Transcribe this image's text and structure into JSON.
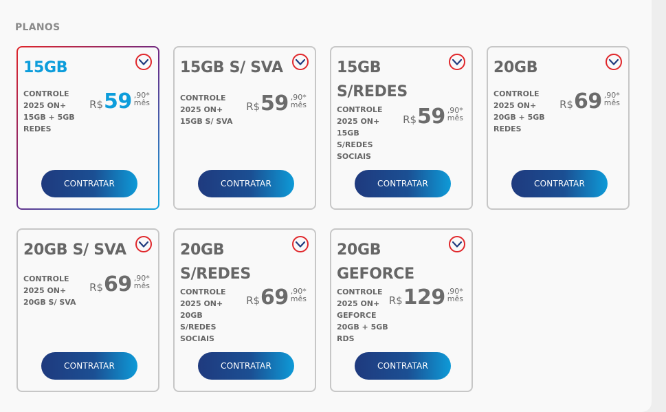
{
  "section": {
    "title": "PLANOS"
  },
  "colors": {
    "accent": "#0d9ddb",
    "button_start": "#1f3a7e",
    "button_end": "#0e9ad7",
    "check_red": "#e0262a",
    "check_blue": "#1f3a7e"
  },
  "icons": {
    "select": "check-circle-icon"
  },
  "plans": [
    {
      "title": "15GB",
      "desc": [
        "CONTROLE",
        "2025 ON+",
        "15GB + 5GB",
        "REDES"
      ],
      "currency": "R$",
      "price_int": "59",
      "price_cents": ",90*",
      "price_period": "mês",
      "button": "CONTRATAR",
      "selected": true
    },
    {
      "title": "15GB S/ SVA",
      "desc": [
        "CONTROLE",
        "2025 ON+",
        "15GB S/ SVA"
      ],
      "currency": "R$",
      "price_int": "59",
      "price_cents": ",90*",
      "price_period": "mês",
      "button": "CONTRATAR",
      "selected": false
    },
    {
      "title": "15GB S/REDES",
      "desc": [
        "CONTROLE",
        "2025 ON+",
        "15GB",
        "S/REDES",
        "SOCIAIS"
      ],
      "currency": "R$",
      "price_int": "59",
      "price_cents": ",90*",
      "price_period": "mês",
      "button": "CONTRATAR",
      "selected": false
    },
    {
      "title": "20GB",
      "desc": [
        "CONTROLE",
        "2025 ON+",
        "20GB + 5GB",
        "REDES"
      ],
      "currency": "R$",
      "price_int": "69",
      "price_cents": ",90*",
      "price_period": "mês",
      "button": "CONTRATAR",
      "selected": false
    },
    {
      "title": "20GB S/ SVA",
      "desc": [
        "CONTROLE",
        "2025 ON+",
        "20GB S/ SVA"
      ],
      "currency": "R$",
      "price_int": "69",
      "price_cents": ",90*",
      "price_period": "mês",
      "button": "CONTRATAR",
      "selected": false
    },
    {
      "title": "20GB S/REDES",
      "desc": [
        "CONTROLE",
        "2025 ON+",
        "20GB",
        "S/REDES",
        "SOCIAIS"
      ],
      "currency": "R$",
      "price_int": "69",
      "price_cents": ",90*",
      "price_period": "mês",
      "button": "CONTRATAR",
      "selected": false
    },
    {
      "title": "20GB GEFORCE",
      "desc": [
        "CONTROLE",
        "2025 ON+",
        "GEFORCE",
        "20GB + 5GB",
        "RDS"
      ],
      "currency": "R$",
      "price_int": "129",
      "price_cents": ",90*",
      "price_period": "mês",
      "button": "CONTRATAR",
      "selected": false
    }
  ]
}
